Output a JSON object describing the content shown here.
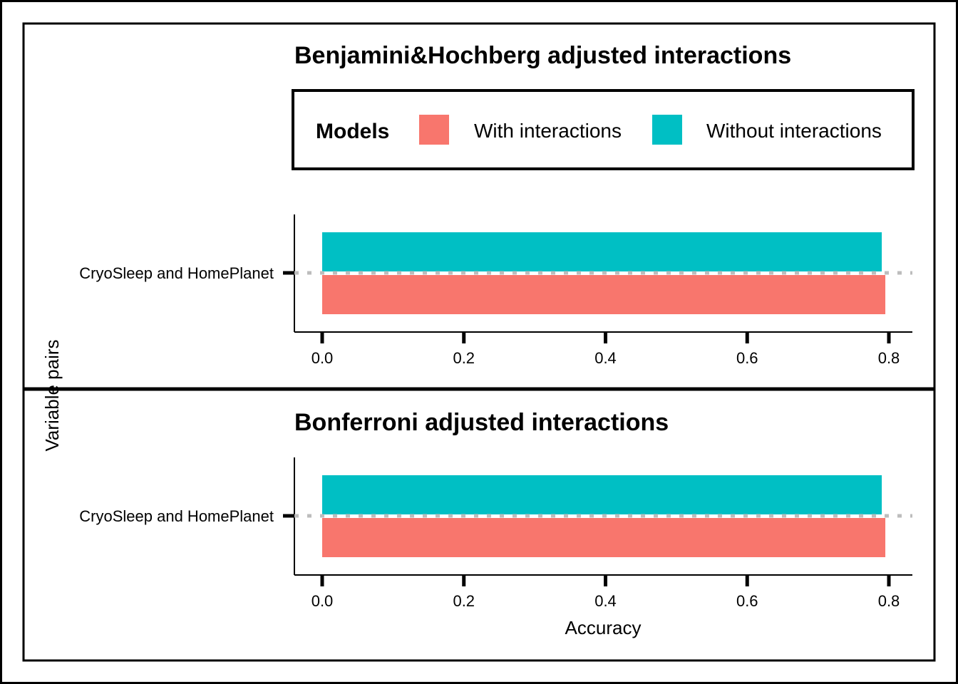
{
  "legend": {
    "title": "Models",
    "items": [
      {
        "label": "With interactions",
        "color": "#F8766D"
      },
      {
        "label": "Without interactions",
        "color": "#00BFC4"
      }
    ]
  },
  "axis": {
    "xlabel": "Accuracy",
    "ylabel": "Variable pairs"
  },
  "chart_data": [
    {
      "type": "bar",
      "orientation": "horizontal",
      "title": "Benjamini&Hochberg adjusted interactions",
      "categories": [
        "CryoSleep and HomePlanet"
      ],
      "series": [
        {
          "name": "Without interactions",
          "color": "#00BFC4",
          "values": [
            0.79
          ]
        },
        {
          "name": "With interactions",
          "color": "#F8766D",
          "values": [
            0.795
          ]
        }
      ],
      "xlim": [
        0,
        0.8
      ],
      "xticks": [
        "0.0",
        "0.2",
        "0.4",
        "0.6",
        "0.8"
      ],
      "xlabel": "",
      "grid": "dotted horizontal line at category"
    },
    {
      "type": "bar",
      "orientation": "horizontal",
      "title": "Bonferroni adjusted interactions",
      "categories": [
        "CryoSleep and HomePlanet"
      ],
      "series": [
        {
          "name": "Without interactions",
          "color": "#00BFC4",
          "values": [
            0.79
          ]
        },
        {
          "name": "With interactions",
          "color": "#F8766D",
          "values": [
            0.795
          ]
        }
      ],
      "xlim": [
        0,
        0.8
      ],
      "xticks": [
        "0.0",
        "0.2",
        "0.4",
        "0.6",
        "0.8"
      ],
      "xlabel": "Accuracy",
      "grid": "dotted horizontal line at category"
    }
  ]
}
